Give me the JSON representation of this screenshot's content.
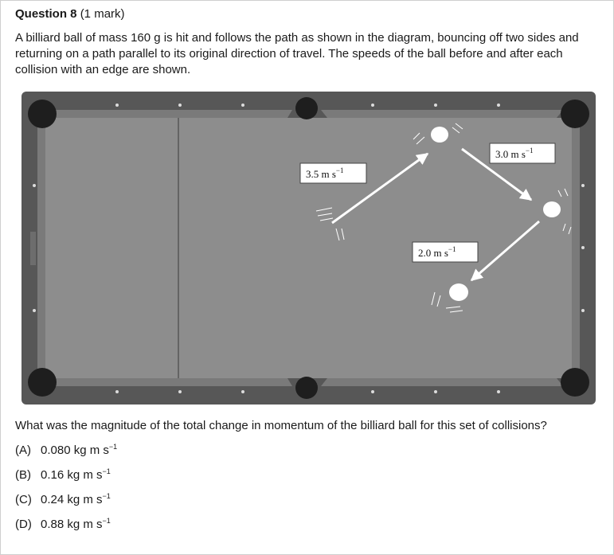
{
  "question": {
    "number_label": "Question 8",
    "marks": "(1 mark)",
    "body": "A billiard ball of mass 160 g is hit and follows the path as shown in the diagram, bouncing off two sides and returning on a path parallel to its original direction of travel. The speeds of the ball before and after each collision with an edge are shown.",
    "prompt": "What was the magnitude of the total change in momentum of the billiard ball for this set of collisions?"
  },
  "diagram": {
    "speed_labels": [
      {
        "value": "3.5",
        "unit": "m s",
        "exp": "−1"
      },
      {
        "value": "3.0",
        "unit": "m s",
        "exp": "−1"
      },
      {
        "value": "2.0",
        "unit": "m s",
        "exp": "−1"
      }
    ],
    "colors": {
      "felt": "#8e8e8e",
      "rail": "#555555",
      "rail_dark": "#3a3a3a",
      "pocket": "#1e1e1e",
      "ball": "#ffffff",
      "path": "#ffffff"
    }
  },
  "options": [
    {
      "letter": "(A)",
      "value": "0.080 kg m s",
      "exp": "−1"
    },
    {
      "letter": "(B)",
      "value": "0.16 kg m s",
      "exp": "−1"
    },
    {
      "letter": "(C)",
      "value": "0.24 kg m s",
      "exp": "−1"
    },
    {
      "letter": "(D)",
      "value": "0.88 kg m s",
      "exp": "−1"
    }
  ]
}
